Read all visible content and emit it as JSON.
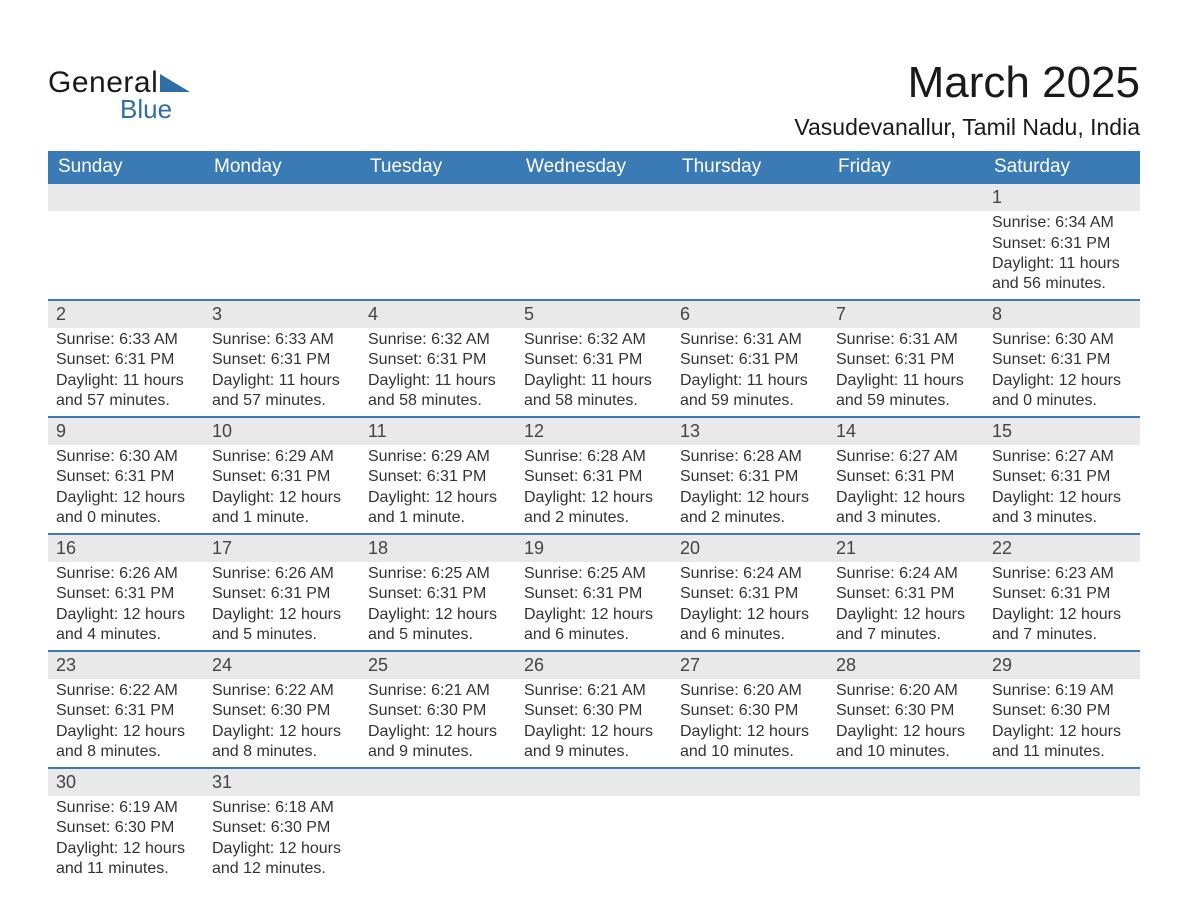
{
  "colors": {
    "header_bg": "#3a7ab5",
    "header_text": "#ffffff",
    "daynum_bg": "#e9e9e9",
    "row_divider": "#3a7ab5",
    "body_text": "#333333",
    "logo_blue": "#2f6fa7",
    "page_bg": "#ffffff"
  },
  "typography": {
    "title_fontsize_pt": 33,
    "location_fontsize_pt": 17,
    "header_fontsize_pt": 14,
    "body_fontsize_pt": 12,
    "font_family": "Arial"
  },
  "logo": {
    "line1": "General",
    "line2": "Blue"
  },
  "title": "March 2025",
  "location": "Vasudevanallur, Tamil Nadu, India",
  "calendar": {
    "type": "table",
    "columns": [
      "Sunday",
      "Monday",
      "Tuesday",
      "Wednesday",
      "Thursday",
      "Friday",
      "Saturday"
    ],
    "leading_blanks": 6,
    "days": [
      {
        "n": 1,
        "sunrise": "6:34 AM",
        "sunset": "6:31 PM",
        "daylight": "11 hours and 56 minutes."
      },
      {
        "n": 2,
        "sunrise": "6:33 AM",
        "sunset": "6:31 PM",
        "daylight": "11 hours and 57 minutes."
      },
      {
        "n": 3,
        "sunrise": "6:33 AM",
        "sunset": "6:31 PM",
        "daylight": "11 hours and 57 minutes."
      },
      {
        "n": 4,
        "sunrise": "6:32 AM",
        "sunset": "6:31 PM",
        "daylight": "11 hours and 58 minutes."
      },
      {
        "n": 5,
        "sunrise": "6:32 AM",
        "sunset": "6:31 PM",
        "daylight": "11 hours and 58 minutes."
      },
      {
        "n": 6,
        "sunrise": "6:31 AM",
        "sunset": "6:31 PM",
        "daylight": "11 hours and 59 minutes."
      },
      {
        "n": 7,
        "sunrise": "6:31 AM",
        "sunset": "6:31 PM",
        "daylight": "11 hours and 59 minutes."
      },
      {
        "n": 8,
        "sunrise": "6:30 AM",
        "sunset": "6:31 PM",
        "daylight": "12 hours and 0 minutes."
      },
      {
        "n": 9,
        "sunrise": "6:30 AM",
        "sunset": "6:31 PM",
        "daylight": "12 hours and 0 minutes."
      },
      {
        "n": 10,
        "sunrise": "6:29 AM",
        "sunset": "6:31 PM",
        "daylight": "12 hours and 1 minute."
      },
      {
        "n": 11,
        "sunrise": "6:29 AM",
        "sunset": "6:31 PM",
        "daylight": "12 hours and 1 minute."
      },
      {
        "n": 12,
        "sunrise": "6:28 AM",
        "sunset": "6:31 PM",
        "daylight": "12 hours and 2 minutes."
      },
      {
        "n": 13,
        "sunrise": "6:28 AM",
        "sunset": "6:31 PM",
        "daylight": "12 hours and 2 minutes."
      },
      {
        "n": 14,
        "sunrise": "6:27 AM",
        "sunset": "6:31 PM",
        "daylight": "12 hours and 3 minutes."
      },
      {
        "n": 15,
        "sunrise": "6:27 AM",
        "sunset": "6:31 PM",
        "daylight": "12 hours and 3 minutes."
      },
      {
        "n": 16,
        "sunrise": "6:26 AM",
        "sunset": "6:31 PM",
        "daylight": "12 hours and 4 minutes."
      },
      {
        "n": 17,
        "sunrise": "6:26 AM",
        "sunset": "6:31 PM",
        "daylight": "12 hours and 5 minutes."
      },
      {
        "n": 18,
        "sunrise": "6:25 AM",
        "sunset": "6:31 PM",
        "daylight": "12 hours and 5 minutes."
      },
      {
        "n": 19,
        "sunrise": "6:25 AM",
        "sunset": "6:31 PM",
        "daylight": "12 hours and 6 minutes."
      },
      {
        "n": 20,
        "sunrise": "6:24 AM",
        "sunset": "6:31 PM",
        "daylight": "12 hours and 6 minutes."
      },
      {
        "n": 21,
        "sunrise": "6:24 AM",
        "sunset": "6:31 PM",
        "daylight": "12 hours and 7 minutes."
      },
      {
        "n": 22,
        "sunrise": "6:23 AM",
        "sunset": "6:31 PM",
        "daylight": "12 hours and 7 minutes."
      },
      {
        "n": 23,
        "sunrise": "6:22 AM",
        "sunset": "6:31 PM",
        "daylight": "12 hours and 8 minutes."
      },
      {
        "n": 24,
        "sunrise": "6:22 AM",
        "sunset": "6:30 PM",
        "daylight": "12 hours and 8 minutes."
      },
      {
        "n": 25,
        "sunrise": "6:21 AM",
        "sunset": "6:30 PM",
        "daylight": "12 hours and 9 minutes."
      },
      {
        "n": 26,
        "sunrise": "6:21 AM",
        "sunset": "6:30 PM",
        "daylight": "12 hours and 9 minutes."
      },
      {
        "n": 27,
        "sunrise": "6:20 AM",
        "sunset": "6:30 PM",
        "daylight": "12 hours and 10 minutes."
      },
      {
        "n": 28,
        "sunrise": "6:20 AM",
        "sunset": "6:30 PM",
        "daylight": "12 hours and 10 minutes."
      },
      {
        "n": 29,
        "sunrise": "6:19 AM",
        "sunset": "6:30 PM",
        "daylight": "12 hours and 11 minutes."
      },
      {
        "n": 30,
        "sunrise": "6:19 AM",
        "sunset": "6:30 PM",
        "daylight": "12 hours and 11 minutes."
      },
      {
        "n": 31,
        "sunrise": "6:18 AM",
        "sunset": "6:30 PM",
        "daylight": "12 hours and 12 minutes."
      }
    ]
  },
  "labels": {
    "sunrise_prefix": "Sunrise: ",
    "sunset_prefix": "Sunset: ",
    "daylight_prefix": "Daylight: "
  }
}
